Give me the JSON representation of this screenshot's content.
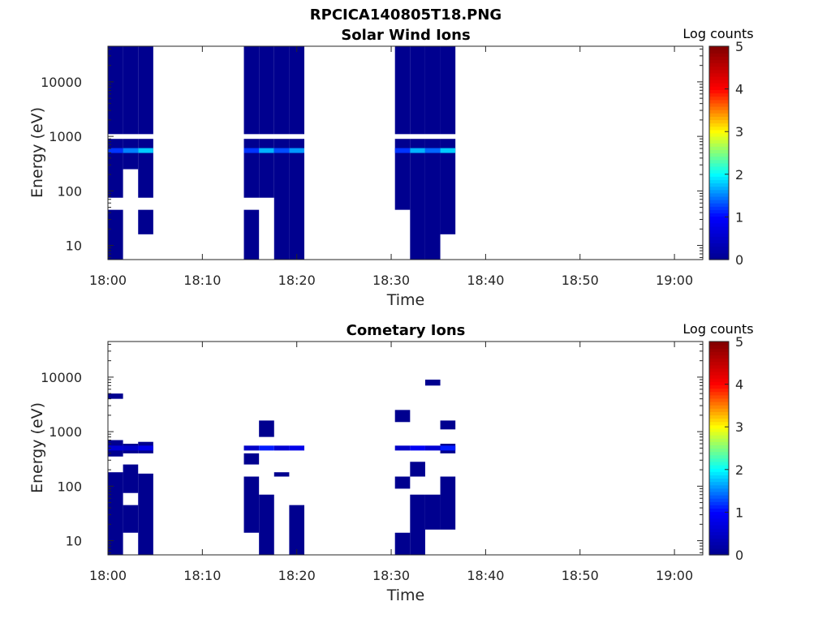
{
  "figure_title": "RPCICA140805T18.PNG",
  "chart_data": [
    {
      "type": "heatmap",
      "title": "Solar Wind Ions",
      "xlabel": "Time",
      "ylabel": "Energy (eV)",
      "x_ticks": [
        "18:00",
        "18:10",
        "18:20",
        "18:30",
        "18:40",
        "18:50",
        "19:00"
      ],
      "x_range_min": [
        0,
        63
      ],
      "y_scale": "log",
      "y_ticks": [
        "10",
        "100",
        "1000",
        "10000"
      ],
      "ylim_eV": [
        5.5,
        45000
      ],
      "colorbar_label": "Log counts",
      "colorbar_ticks": [
        "0",
        "1",
        "2",
        "3",
        "4",
        "5"
      ],
      "clim": [
        0,
        5
      ],
      "colormap": [
        "#00008f",
        "#0000ff",
        "#00ffff",
        "#ffff00",
        "#ff0000",
        "#800000"
      ],
      "bursts": [
        {
          "t_start_min": 0.0,
          "t_end_min": 4.8,
          "columns": [
            {
              "t0": 0.0,
              "t1": 1.6,
              "bands": [
                [
                  5.5,
                  45
                ],
                [
                  75,
                  900
                ],
                [
                  1100,
                  45000
                ]
              ],
              "peak": {
                "energy_eV": 550,
                "value": 1.2
              }
            },
            {
              "t0": 1.6,
              "t1": 3.2,
              "bands": [
                [
                  250,
                  900
                ],
                [
                  1100,
                  45000
                ]
              ],
              "peak": {
                "energy_eV": 550,
                "value": 1.5
              }
            },
            {
              "t0": 3.2,
              "t1": 4.8,
              "bands": [
                [
                  16,
                  45
                ],
                [
                  75,
                  900
                ],
                [
                  1100,
                  45000
                ]
              ],
              "peak": {
                "energy_eV": 550,
                "value": 1.8
              }
            }
          ]
        },
        {
          "t_start_min": 14.4,
          "t_end_min": 20.8,
          "columns": [
            {
              "t0": 14.4,
              "t1": 16.0,
              "bands": [
                [
                  5.5,
                  45
                ],
                [
                  75,
                  900
                ],
                [
                  1100,
                  45000
                ]
              ],
              "peak": {
                "energy_eV": 550,
                "value": 1.2
              }
            },
            {
              "t0": 16.0,
              "t1": 17.6,
              "bands": [
                [
                  75,
                  900
                ],
                [
                  1100,
                  45000
                ]
              ],
              "peak": {
                "energy_eV": 550,
                "value": 1.7
              }
            },
            {
              "t0": 17.6,
              "t1": 19.2,
              "bands": [
                [
                  5.5,
                  900
                ],
                [
                  1100,
                  45000
                ]
              ],
              "peak": {
                "energy_eV": 550,
                "value": 1.3
              }
            },
            {
              "t0": 19.2,
              "t1": 20.8,
              "bands": [
                [
                  5.5,
                  900
                ],
                [
                  1100,
                  45000
                ]
              ],
              "peak": {
                "energy_eV": 550,
                "value": 1.6
              }
            }
          ]
        },
        {
          "t_start_min": 30.4,
          "t_end_min": 36.8,
          "columns": [
            {
              "t0": 30.4,
              "t1": 32.0,
              "bands": [
                [
                  45,
                  900
                ],
                [
                  1100,
                  45000
                ]
              ],
              "peak": {
                "energy_eV": 550,
                "value": 1.2
              }
            },
            {
              "t0": 32.0,
              "t1": 33.6,
              "bands": [
                [
                  5.5,
                  900
                ],
                [
                  1100,
                  45000
                ]
              ],
              "peak": {
                "energy_eV": 550,
                "value": 1.7
              }
            },
            {
              "t0": 33.6,
              "t1": 35.2,
              "bands": [
                [
                  5.5,
                  900
                ],
                [
                  1100,
                  45000
                ]
              ],
              "peak": {
                "energy_eV": 550,
                "value": 1.4
              }
            },
            {
              "t0": 35.2,
              "t1": 36.8,
              "bands": [
                [
                  16,
                  900
                ],
                [
                  1100,
                  45000
                ]
              ],
              "peak": {
                "energy_eV": 550,
                "value": 1.8
              }
            }
          ]
        }
      ]
    },
    {
      "type": "heatmap",
      "title": "Cometary Ions",
      "xlabel": "Time",
      "ylabel": "Energy (eV)",
      "x_ticks": [
        "18:00",
        "18:10",
        "18:20",
        "18:30",
        "18:40",
        "18:50",
        "19:00"
      ],
      "x_range_min": [
        0,
        63
      ],
      "y_scale": "log",
      "y_ticks": [
        "10",
        "100",
        "1000",
        "10000"
      ],
      "ylim_eV": [
        5.5,
        45000
      ],
      "colorbar_label": "Log counts",
      "colorbar_ticks": [
        "0",
        "1",
        "2",
        "3",
        "4",
        "5"
      ],
      "clim": [
        0,
        5
      ],
      "colormap": [
        "#00008f",
        "#0000ff",
        "#00ffff",
        "#ffff00",
        "#ff0000",
        "#800000"
      ],
      "bursts": [
        {
          "t_start_min": 0.0,
          "t_end_min": 4.8,
          "columns": [
            {
              "t0": 0.0,
              "t1": 1.6,
              "bands": [
                [
                  5.5,
                  180
                ],
                [
                  350,
                  700
                ],
                [
                  4000,
                  5000
                ]
              ],
              "peak": {
                "energy_eV": 500,
                "value": 0.6
              }
            },
            {
              "t0": 1.6,
              "t1": 3.2,
              "bands": [
                [
                  14,
                  45
                ],
                [
                  75,
                  250
                ],
                [
                  400,
                  600
                ]
              ],
              "peak": {
                "energy_eV": 500,
                "value": 0.5
              }
            },
            {
              "t0": 3.2,
              "t1": 4.8,
              "bands": [
                [
                  5.5,
                  170
                ],
                [
                  400,
                  650
                ]
              ],
              "peak": {
                "energy_eV": 500,
                "value": 0.8
              }
            }
          ]
        },
        {
          "t_start_min": 14.4,
          "t_end_min": 20.8,
          "columns": [
            {
              "t0": 14.4,
              "t1": 16.0,
              "bands": [
                [
                  14,
                  150
                ],
                [
                  250,
                  400
                ]
              ],
              "peak": {
                "energy_eV": 500,
                "value": 0.5
              }
            },
            {
              "t0": 16.0,
              "t1": 17.6,
              "bands": [
                [
                  5.5,
                  70
                ],
                [
                  800,
                  1600
                ]
              ],
              "peak": {
                "energy_eV": 500,
                "value": 1.1
              }
            },
            {
              "t0": 17.6,
              "t1": 19.2,
              "bands": [
                [
                  150,
                  180
                ]
              ],
              "peak": {
                "energy_eV": 500,
                "value": 0.6
              }
            },
            {
              "t0": 19.2,
              "t1": 20.8,
              "bands": [
                [
                  5.5,
                  45
                ]
              ],
              "peak": {
                "energy_eV": 500,
                "value": 0.8
              }
            }
          ]
        },
        {
          "t_start_min": 30.4,
          "t_end_min": 36.8,
          "columns": [
            {
              "t0": 30.4,
              "t1": 32.0,
              "bands": [
                [
                  5.5,
                  14
                ],
                [
                  90,
                  150
                ],
                [
                  1500,
                  2500
                ]
              ],
              "peak": {
                "energy_eV": 500,
                "value": 0.5
              }
            },
            {
              "t0": 32.0,
              "t1": 33.6,
              "bands": [
                [
                  5.5,
                  70
                ],
                [
                  150,
                  280
                ]
              ],
              "peak": {
                "energy_eV": 500,
                "value": 0.9
              }
            },
            {
              "t0": 33.6,
              "t1": 35.2,
              "bands": [
                [
                  16,
                  70
                ],
                [
                  7000,
                  9000
                ]
              ],
              "peak": {
                "energy_eV": 500,
                "value": 0.6
              }
            },
            {
              "t0": 35.2,
              "t1": 36.8,
              "bands": [
                [
                  16,
                  150
                ],
                [
                  400,
                  600
                ],
                [
                  1100,
                  1600
                ]
              ],
              "peak": {
                "energy_eV": 500,
                "value": 1.1
              }
            }
          ]
        }
      ]
    }
  ]
}
